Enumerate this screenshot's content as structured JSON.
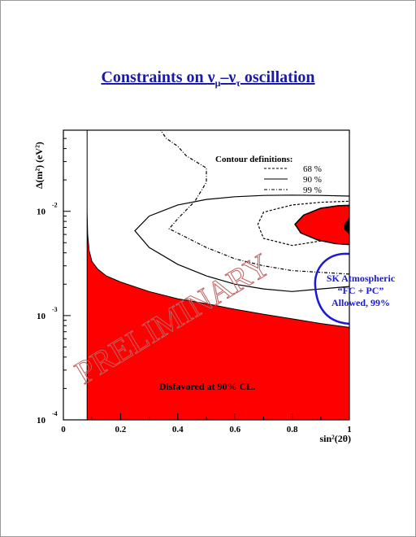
{
  "page": {
    "title_prefix": "Constraints on ",
    "nu": "ν",
    "sub_mu": "μ",
    "dash": "–",
    "sub_tau": "τ",
    "title_suffix": " oscillation"
  },
  "chart_data": {
    "type": "contour",
    "title": "Constraints on νμ–ντ oscillation",
    "xlabel": "sin²(2θ)",
    "ylabel": "Δ(m²) (eV²)",
    "xlim": [
      0,
      1
    ],
    "ylim": [
      0.0001,
      0.06
    ],
    "yscale": "log",
    "x_ticks": [
      "0",
      "0.2",
      "0.4",
      "0.6",
      "0.8",
      "1"
    ],
    "y_ticks": [
      {
        "value": 0.01,
        "base": "10",
        "exp": "-2"
      },
      {
        "value": 0.001,
        "base": "10",
        "exp": "-3"
      },
      {
        "value": 0.0001,
        "base": "10",
        "exp": "-4"
      }
    ],
    "legend": {
      "title": "Contour definitions:",
      "entries": [
        {
          "label": "68 %",
          "style": "dashed"
        },
        {
          "label": "90 %",
          "style": "solid"
        },
        {
          "label": "99 %",
          "style": "dash-dot"
        }
      ]
    },
    "disfavored_region": {
      "label": "Disfavored at 90% CL.",
      "color": "#ff0000",
      "boundary": {
        "x": [
          0.083,
          0.083,
          0.085,
          0.09,
          0.1,
          0.12,
          0.15,
          0.2,
          0.3,
          0.4,
          0.5,
          0.6,
          0.7,
          0.8,
          0.9,
          1.0
        ],
        "dm2": [
          0.06,
          0.01,
          0.006,
          0.0042,
          0.0033,
          0.0028,
          0.0024,
          0.0021,
          0.0017,
          0.00145,
          0.0013,
          0.00115,
          0.00103,
          0.00093,
          0.00084,
          0.00077
        ]
      }
    },
    "contours": [
      {
        "name": "68 %",
        "style": "dashed",
        "x": [
          1.0,
          0.9,
          0.8,
          0.7,
          0.68,
          0.7,
          0.8,
          0.9,
          1.0
        ],
        "dm2": [
          0.0055,
          0.0052,
          0.0047,
          0.0055,
          0.0075,
          0.0098,
          0.0115,
          0.0122,
          0.0125
        ]
      },
      {
        "name": "90 %",
        "style": "solid",
        "x": [
          1.0,
          0.9,
          0.8,
          0.7,
          0.6,
          0.5,
          0.4,
          0.3,
          0.25,
          0.3,
          0.4,
          0.5,
          0.6,
          0.7,
          0.8,
          0.9,
          1.0
        ],
        "dm2": [
          0.0019,
          0.0018,
          0.0017,
          0.0018,
          0.002,
          0.0024,
          0.0031,
          0.0045,
          0.0065,
          0.009,
          0.0115,
          0.013,
          0.0138,
          0.0142,
          0.0143,
          0.0142,
          0.014
        ]
      },
      {
        "name": "99 %",
        "style": "dash-dot",
        "x": [
          1.0,
          0.9,
          0.8,
          0.7,
          0.6,
          0.5,
          0.42,
          0.37,
          0.4,
          0.46,
          0.5,
          0.5,
          0.43,
          0.4,
          0.36,
          0.34
        ],
        "dm2": [
          0.0025,
          0.0026,
          0.0027,
          0.003,
          0.0035,
          0.0045,
          0.0058,
          0.0068,
          0.0085,
          0.0125,
          0.019,
          0.026,
          0.034,
          0.042,
          0.05,
          0.06
        ]
      }
    ],
    "sk_allowed": {
      "label_lines": [
        "SK Atmospheric",
        "“FC + PC”",
        "Allowed, 99%"
      ],
      "colors": {
        "fill": "#ff0000",
        "core": "#000000",
        "outline": "#1a1ad8"
      },
      "outer_x": [
        0.81,
        0.84,
        0.9,
        0.96,
        1.0,
        1.0,
        0.95,
        0.89,
        0.83
      ],
      "outer_dm2": [
        0.0075,
        0.0092,
        0.0107,
        0.0113,
        0.0114,
        0.0048,
        0.0049,
        0.0053,
        0.0062
      ],
      "core_x": [
        0.98,
        1.0,
        1.0,
        0.98
      ],
      "core_dm2": [
        0.0073,
        0.0088,
        0.006,
        0.0068
      ]
    },
    "watermark": "PRELIMINARY",
    "region_labels": [
      "Disfavored at 90% CL."
    ]
  }
}
